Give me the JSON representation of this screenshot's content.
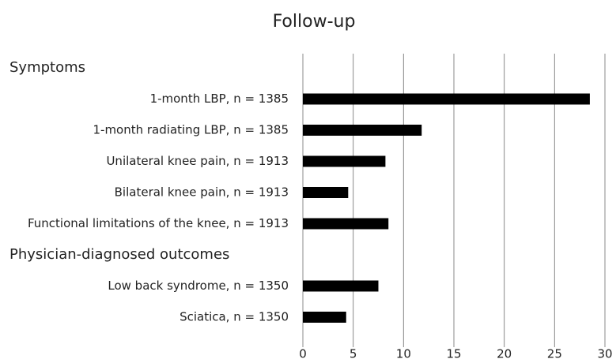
{
  "chart_data": {
    "type": "bar",
    "orientation": "horizontal",
    "title": "Follow-up",
    "groups": [
      {
        "name": "Symptoms",
        "categories": [
          "1-month LBP, n = 1385",
          "1-month radiating LBP, n = 1385",
          "Unilateral knee pain, n = 1913",
          "Bilateral knee pain, n = 1913",
          "Functional limitations of the knee, n = 1913"
        ],
        "values": [
          28.5,
          11.8,
          8.2,
          4.5,
          8.5
        ]
      },
      {
        "name": "Physician-diagnosed outcomes",
        "categories": [
          "Low back syndrome, n = 1350",
          "Sciatica, n = 1350"
        ],
        "values": [
          7.5,
          4.3
        ]
      }
    ],
    "color": "#000000",
    "xlim": [
      0,
      30
    ],
    "xticks": [
      0,
      5,
      10,
      15,
      20,
      25,
      30
    ],
    "grid": true
  }
}
